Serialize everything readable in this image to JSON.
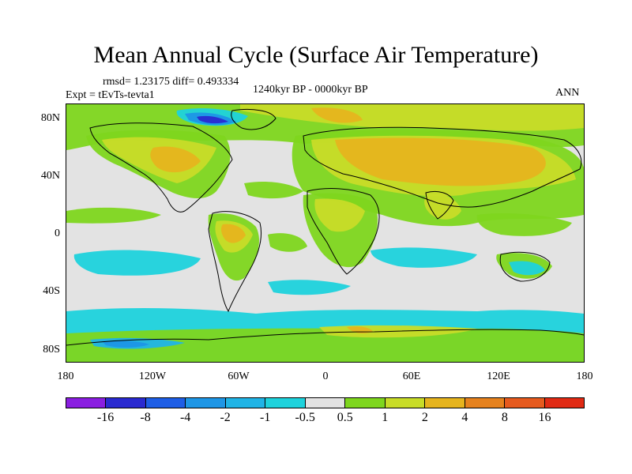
{
  "title": "Mean Annual Cycle (Surface Air Temperature)",
  "stats": "rmsd= 1.23175  diff= 0.493334",
  "experiment": "Expt = tEvTs-tevta1",
  "period": "1240kyr BP - 0000kyr BP",
  "season": "ANN",
  "lat_labels": [
    "80N",
    "40N",
    "0",
    "40S",
    "80S"
  ],
  "lon_labels": [
    "180",
    "120W",
    "60W",
    "0",
    "60E",
    "120E",
    "180"
  ],
  "colorbar": {
    "labels": [
      "-16",
      "-8",
      "-4",
      "-2",
      "-1",
      "-0.5",
      "0.5",
      "1",
      "2",
      "4",
      "8",
      "16"
    ],
    "colors": [
      "#8a1ee0",
      "#2a2ad0",
      "#1e5ee6",
      "#1e96e6",
      "#20b4e6",
      "#1ed2dc",
      "#e3e3e3",
      "#7ed61e",
      "#c8dc28",
      "#e6b41e",
      "#e6821e",
      "#e65a1e",
      "#e02a14"
    ]
  },
  "colors": {
    "no_change": "#e3e3e3",
    "warm_1": "#7ed61e",
    "warm_2": "#c8dc28",
    "warm_4": "#e6b41e",
    "warm_8": "#e6821e",
    "cool_1": "#1ed2dc",
    "cool_2": "#20b4e6",
    "cool_4": "#1e96e6",
    "cool_8": "#2a2ad0",
    "coastline": "#000000"
  }
}
